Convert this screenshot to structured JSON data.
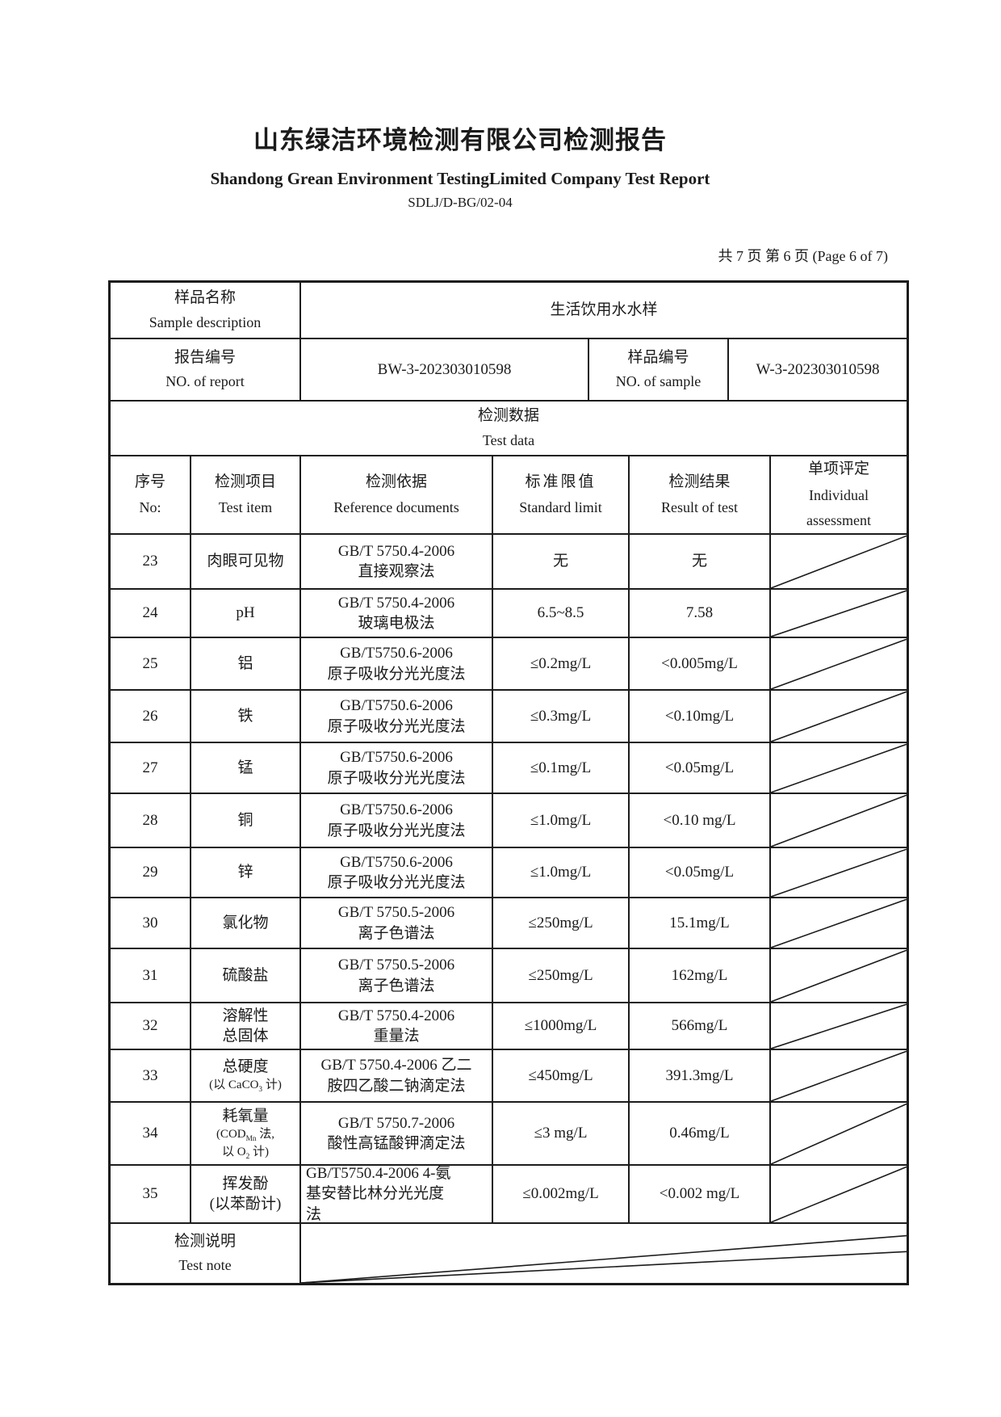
{
  "page": {
    "title_cn": "山东绿洁环境检测有限公司检测报告",
    "title_en": "Shandong Grean Environment TestingLimited Company Test Report",
    "doc_code": "SDLJ/D-BG/02-04",
    "page_info": "共 7 页  第 6 页  (Page 6 of 7)"
  },
  "sample": {
    "label_cn": "样品名称",
    "label_en": "Sample description",
    "value": "生活饮用水水样"
  },
  "report_no": {
    "label_cn": "报告编号",
    "label_en": "NO. of report",
    "value": "BW-3-202303010598"
  },
  "sample_no": {
    "label_cn": "样品编号",
    "label_en": "NO. of sample",
    "value": "W-3-202303010598"
  },
  "section": {
    "title_cn": "检测数据",
    "title_en": "Test data"
  },
  "columns": {
    "no_cn": "序号",
    "no_en": "No:",
    "item_cn": "检测项目",
    "item_en": "Test item",
    "ref_cn": "检测依据",
    "ref_en": "Reference documents",
    "limit_cn": "标准限值",
    "limit_en": "Standard limit",
    "result_cn": "检测结果",
    "result_en": "Result of test",
    "assess_cn": "单项评定",
    "assess_en_1": "Individual",
    "assess_en_2": "assessment"
  },
  "rows": [
    {
      "no": "23",
      "item": [
        "肉眼可见物"
      ],
      "ref": [
        "GB/T 5750.4-2006",
        "直接观察法"
      ],
      "limit": "无",
      "result": "无"
    },
    {
      "no": "24",
      "item": [
        "pH"
      ],
      "ref": [
        "GB/T 5750.4-2006",
        "玻璃电极法"
      ],
      "limit": "6.5~8.5",
      "result": "7.58"
    },
    {
      "no": "25",
      "item": [
        "铝"
      ],
      "ref": [
        "GB/T5750.6-2006",
        "原子吸收分光光度法"
      ],
      "limit": "≤0.2mg/L",
      "result": "<0.005mg/L"
    },
    {
      "no": "26",
      "item": [
        "铁"
      ],
      "ref": [
        "GB/T5750.6-2006",
        "原子吸收分光光度法"
      ],
      "limit": "≤0.3mg/L",
      "result": "<0.10mg/L"
    },
    {
      "no": "27",
      "item": [
        "锰"
      ],
      "ref": [
        "GB/T5750.6-2006",
        "原子吸收分光光度法"
      ],
      "limit": "≤0.1mg/L",
      "result": "<0.05mg/L"
    },
    {
      "no": "28",
      "item": [
        "铜"
      ],
      "ref": [
        "GB/T5750.6-2006",
        "原子吸收分光光度法"
      ],
      "limit": "≤1.0mg/L",
      "result": "<0.10 mg/L"
    },
    {
      "no": "29",
      "item": [
        "锌"
      ],
      "ref": [
        "GB/T5750.6-2006",
        "原子吸收分光光度法"
      ],
      "limit": "≤1.0mg/L",
      "result": "<0.05mg/L"
    },
    {
      "no": "30",
      "item": [
        "氯化物"
      ],
      "ref": [
        "GB/T 5750.5-2006",
        "离子色谱法"
      ],
      "limit": "≤250mg/L",
      "result": "15.1mg/L"
    },
    {
      "no": "31",
      "item": [
        "硫酸盐"
      ],
      "ref": [
        "GB/T 5750.5-2006",
        "离子色谱法"
      ],
      "limit": "≤250mg/L",
      "result": "162mg/L"
    },
    {
      "no": "32",
      "item": [
        "溶解性",
        "总固体"
      ],
      "ref": [
        "GB/T 5750.4-2006",
        "重量法"
      ],
      "limit": "≤1000mg/L",
      "result": "566mg/L"
    },
    {
      "no": "33",
      "item": [
        "总硬度",
        {
          "segs": [
            {
              "t": "(以 CaCO"
            },
            {
              "t": "3",
              "sub": true
            },
            {
              "t": " 计)"
            }
          ],
          "small": true
        }
      ],
      "ref": [
        "GB/T 5750.4-2006 乙二",
        "胺四乙酸二钠滴定法"
      ],
      "limit": "≤450mg/L",
      "result": "391.3mg/L"
    },
    {
      "no": "34",
      "item": [
        "耗氧量",
        {
          "segs": [
            {
              "t": "(COD"
            },
            {
              "t": "Mn",
              "sub": true
            },
            {
              "t": " 法,"
            }
          ],
          "small": true
        },
        {
          "segs": [
            {
              "t": "以 O"
            },
            {
              "t": "2",
              "sub": true
            },
            {
              "t": " 计)"
            }
          ],
          "small": true
        }
      ],
      "ref": [
        "GB/T 5750.7-2006",
        "酸性高锰酸钾滴定法"
      ],
      "limit": "≤3 mg/L",
      "result": "0.46mg/L"
    },
    {
      "no": "35",
      "item": [
        "挥发酚",
        "(以苯酚计)"
      ],
      "ref": [
        "GB/T5750.4-2006 4-氨",
        "基安替比林分光光度",
        "法"
      ],
      "ref_align": "left",
      "limit": "≤0.002mg/L",
      "result": "<0.002 mg/L"
    }
  ],
  "note": {
    "label_cn": "检测说明",
    "label_en": "Test note"
  },
  "colors": {
    "ink": "#1b1b1b",
    "paper": "#ffffff"
  }
}
